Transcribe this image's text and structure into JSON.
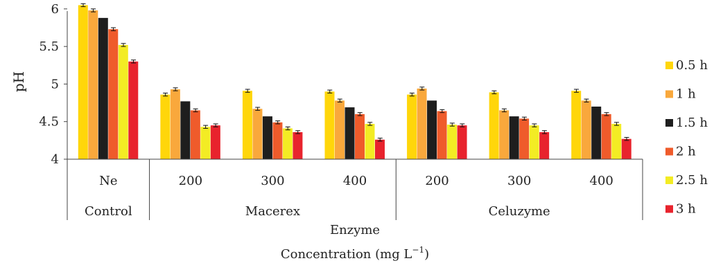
{
  "chart_data": {
    "type": "bar",
    "ylabel": "pH",
    "xlabel_line1": "Enzyme",
    "xlabel_line2": "Concentration (mg L",
    "xlabel_sup": "−1",
    "xlabel_close": ")",
    "ylim": [
      4,
      6.1
    ],
    "yticks": [
      {
        "value": 4,
        "label": "4"
      },
      {
        "value": 4.5,
        "label": "4.5"
      },
      {
        "value": 5,
        "label": "5"
      },
      {
        "value": 5.5,
        "label": "5.5"
      },
      {
        "value": 6,
        "label": "6"
      }
    ],
    "categories": [
      "Ne",
      "200",
      "300",
      "400",
      "200",
      "300",
      "400"
    ],
    "groups": [
      {
        "label": "Control",
        "count": 1
      },
      {
        "label": "Macerex",
        "count": 3
      },
      {
        "label": "Celuzyme",
        "count": 3
      }
    ],
    "legend_position": "right",
    "series": [
      {
        "name": "0.5 h",
        "color": "#FFD60A",
        "values": [
          6.05,
          4.86,
          4.91,
          4.9,
          4.86,
          4.89,
          4.91
        ],
        "err": [
          0.02,
          0.02,
          0.02,
          0.02,
          0.02,
          0.02,
          0.02
        ]
      },
      {
        "name": "1 h",
        "color": "#F9A83C",
        "values": [
          5.98,
          4.93,
          4.67,
          4.78,
          4.94,
          4.65,
          4.78
        ],
        "err": [
          0.02,
          0.02,
          0.02,
          0.02,
          0.02,
          0.02,
          0.02
        ]
      },
      {
        "name": "1.5 h",
        "color": "#1E1E1E",
        "values": [
          5.88,
          4.77,
          4.57,
          4.69,
          4.78,
          4.57,
          4.7
        ],
        "err": [
          0,
          0,
          0,
          0,
          0,
          0,
          0
        ]
      },
      {
        "name": "2 h",
        "color": "#EF5B2B",
        "values": [
          5.73,
          4.65,
          4.49,
          4.6,
          4.64,
          4.54,
          4.6
        ],
        "err": [
          0.02,
          0.02,
          0.02,
          0.02,
          0.02,
          0.02,
          0.02
        ]
      },
      {
        "name": "2.5 h",
        "color": "#F3EC24",
        "values": [
          5.52,
          4.43,
          4.41,
          4.47,
          4.46,
          4.45,
          4.47
        ],
        "err": [
          0.02,
          0.02,
          0.02,
          0.02,
          0.02,
          0.02,
          0.02
        ]
      },
      {
        "name": "3 h",
        "color": "#E8232D",
        "values": [
          5.3,
          4.45,
          4.36,
          4.26,
          4.45,
          4.36,
          4.27
        ],
        "err": [
          0.02,
          0.02,
          0.02,
          0.02,
          0.02,
          0.02,
          0.02
        ]
      }
    ]
  }
}
